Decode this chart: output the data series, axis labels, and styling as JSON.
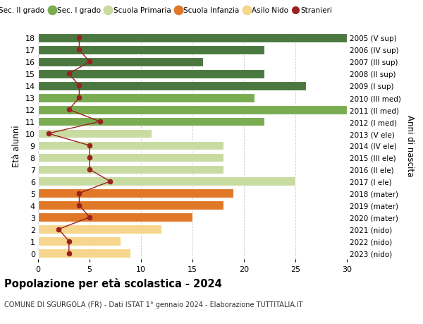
{
  "ages": [
    0,
    1,
    2,
    3,
    4,
    5,
    6,
    7,
    8,
    9,
    10,
    11,
    12,
    13,
    14,
    15,
    16,
    17,
    18
  ],
  "right_labels": [
    "2023 (nido)",
    "2022 (nido)",
    "2021 (nido)",
    "2020 (mater)",
    "2019 (mater)",
    "2018 (mater)",
    "2017 (I ele)",
    "2016 (II ele)",
    "2015 (III ele)",
    "2014 (IV ele)",
    "2013 (V ele)",
    "2012 (I med)",
    "2011 (II med)",
    "2010 (III med)",
    "2009 (I sup)",
    "2008 (II sup)",
    "2007 (III sup)",
    "2006 (IV sup)",
    "2005 (V sup)"
  ],
  "bar_values": [
    9,
    8,
    12,
    15,
    18,
    19,
    25,
    18,
    18,
    18,
    11,
    22,
    30,
    21,
    26,
    22,
    16,
    22,
    30
  ],
  "bar_colors": [
    "#f5d68c",
    "#f5d68c",
    "#f5d68c",
    "#e07828",
    "#e07828",
    "#e07828",
    "#c8dba0",
    "#c8dba0",
    "#c8dba0",
    "#c8dba0",
    "#c8dba0",
    "#7aac52",
    "#7aac52",
    "#7aac52",
    "#4a7840",
    "#4a7840",
    "#4a7840",
    "#4a7840",
    "#4a7840"
  ],
  "stranieri_values": [
    3,
    3,
    2,
    5,
    4,
    4,
    7,
    5,
    5,
    5,
    1,
    6,
    3,
    4,
    4,
    3,
    5,
    4,
    4
  ],
  "stranieri_color": "#9b2020",
  "title": "Popolazione per età scolastica - 2024",
  "subtitle": "COMUNE DI SGURGOLA (FR) - Dati ISTAT 1° gennaio 2024 - Elaborazione TUTTITALIA.IT",
  "ylabel_left": "Età alunni",
  "ylabel_right": "Anni di nascita",
  "xlim": [
    0,
    30
  ],
  "legend_items": [
    {
      "label": "Sec. II grado",
      "color": "#4a7840"
    },
    {
      "label": "Sec. I grado",
      "color": "#7aac52"
    },
    {
      "label": "Scuola Primaria",
      "color": "#c8dba0"
    },
    {
      "label": "Scuola Infanzia",
      "color": "#e07828"
    },
    {
      "label": "Asilo Nido",
      "color": "#f5d68c"
    },
    {
      "label": "Stranieri",
      "color": "#9b2020"
    }
  ],
  "bg_color": "#ffffff",
  "grid_color": "#cccccc",
  "bar_height": 0.75
}
